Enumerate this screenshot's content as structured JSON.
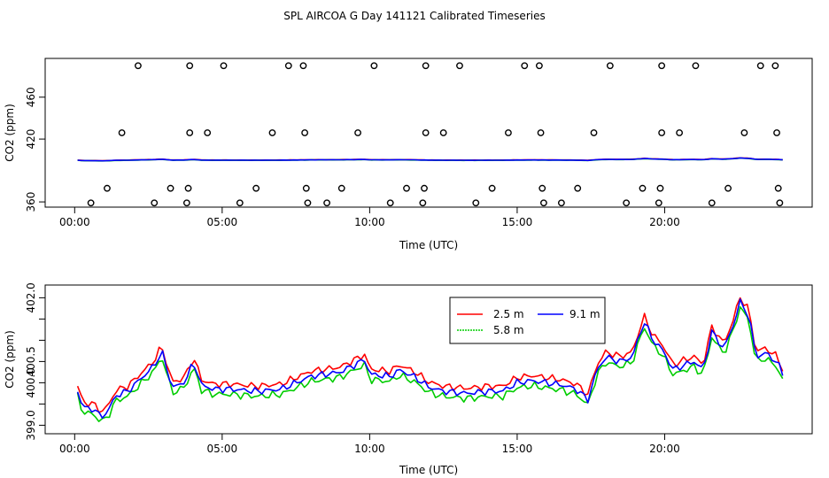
{
  "title": "SPL AIRCOA G  Day 141121  Calibrated Timeseries",
  "chart_data": [
    {
      "type": "scatter",
      "xlabel": "Time (UTC)",
      "ylabel": "CO2 (ppm)",
      "xlim": [
        -1,
        25
      ],
      "ylim": [
        355,
        497
      ],
      "xticks": [
        0,
        5,
        10,
        15,
        20
      ],
      "xtick_labels": [
        "00:00",
        "05:00",
        "10:00",
        "15:00",
        "20:00"
      ],
      "yticks": [
        360,
        420,
        460
      ],
      "ytick_labels": [
        "360",
        "420",
        "460"
      ],
      "grid": false,
      "flag_points": [
        [
          0.55,
          359
        ],
        [
          1.1,
          373
        ],
        [
          1.6,
          426
        ],
        [
          2.15,
          490
        ],
        [
          2.7,
          359
        ],
        [
          3.25,
          373
        ],
        [
          3.8,
          359
        ],
        [
          3.85,
          373
        ],
        [
          3.9,
          426
        ],
        [
          3.9,
          490
        ],
        [
          4.5,
          426
        ],
        [
          5.05,
          490
        ],
        [
          5.6,
          359
        ],
        [
          6.15,
          373
        ],
        [
          6.7,
          426
        ],
        [
          7.25,
          490
        ],
        [
          7.75,
          490
        ],
        [
          7.8,
          426
        ],
        [
          7.85,
          373
        ],
        [
          7.9,
          359
        ],
        [
          8.55,
          359
        ],
        [
          9.05,
          373
        ],
        [
          9.6,
          426
        ],
        [
          10.15,
          490
        ],
        [
          10.7,
          359
        ],
        [
          11.25,
          373
        ],
        [
          11.8,
          359
        ],
        [
          11.85,
          373
        ],
        [
          11.9,
          426
        ],
        [
          11.9,
          490
        ],
        [
          12.5,
          426
        ],
        [
          13.05,
          490
        ],
        [
          13.6,
          359
        ],
        [
          14.15,
          373
        ],
        [
          14.7,
          426
        ],
        [
          15.25,
          490
        ],
        [
          15.75,
          490
        ],
        [
          15.8,
          426
        ],
        [
          15.85,
          373
        ],
        [
          15.9,
          359
        ],
        [
          16.5,
          359
        ],
        [
          17.05,
          373
        ],
        [
          17.6,
          426
        ],
        [
          18.15,
          490
        ],
        [
          18.7,
          359
        ],
        [
          19.25,
          373
        ],
        [
          19.8,
          359
        ],
        [
          19.85,
          373
        ],
        [
          19.9,
          426
        ],
        [
          19.9,
          490
        ],
        [
          20.5,
          426
        ],
        [
          21.05,
          490
        ],
        [
          21.6,
          359
        ],
        [
          22.15,
          373
        ],
        [
          22.7,
          426
        ],
        [
          23.25,
          490
        ],
        [
          23.75,
          490
        ],
        [
          23.8,
          426
        ],
        [
          23.85,
          373
        ],
        [
          23.9,
          359
        ]
      ],
      "series_level": 400
    },
    {
      "type": "line",
      "xlabel": "Time (UTC)",
      "ylabel": "CO2 (ppm)",
      "xlim": [
        -1,
        25
      ],
      "ylim": [
        398.8,
        402.3
      ],
      "xticks": [
        0,
        5,
        10,
        15,
        20
      ],
      "xtick_labels": [
        "00:00",
        "05:00",
        "10:00",
        "15:00",
        "20:00"
      ],
      "yticks": [
        399.0,
        399.5,
        400.0,
        400.5,
        401.0,
        401.5,
        402.0
      ],
      "ytick_labels": [
        "399.0",
        "",
        "400.0",
        "400.5",
        "",
        "",
        "402.0"
      ],
      "grid": false,
      "legend_position": "top-right",
      "anchors": [
        [
          0.1,
          399.8
        ],
        [
          0.3,
          399.4
        ],
        [
          0.6,
          399.4
        ],
        [
          0.9,
          399.2
        ],
        [
          1.1,
          399.3
        ],
        [
          1.4,
          399.7
        ],
        [
          1.8,
          399.8
        ],
        [
          2.1,
          400.0
        ],
        [
          2.4,
          400.2
        ],
        [
          2.7,
          400.4
        ],
        [
          2.95,
          400.75
        ],
        [
          3.3,
          399.9
        ],
        [
          3.6,
          399.95
        ],
        [
          3.9,
          400.2
        ],
        [
          4.0,
          400.55
        ],
        [
          4.3,
          399.95
        ],
        [
          4.7,
          399.85
        ],
        [
          5.3,
          399.85
        ],
        [
          6.2,
          399.8
        ],
        [
          7.0,
          399.85
        ],
        [
          8.0,
          400.15
        ],
        [
          9.0,
          400.25
        ],
        [
          9.85,
          400.55
        ],
        [
          10.0,
          400.2
        ],
        [
          10.7,
          400.15
        ],
        [
          11.0,
          400.3
        ],
        [
          11.5,
          400.15
        ],
        [
          12.0,
          399.9
        ],
        [
          12.5,
          399.8
        ],
        [
          13.3,
          399.75
        ],
        [
          14.0,
          399.8
        ],
        [
          14.5,
          399.8
        ],
        [
          15.0,
          400.0
        ],
        [
          15.5,
          400.05
        ],
        [
          16.0,
          400.0
        ],
        [
          16.5,
          399.95
        ],
        [
          17.0,
          399.85
        ],
        [
          17.4,
          399.6
        ],
        [
          17.7,
          400.3
        ],
        [
          18.0,
          400.6
        ],
        [
          18.5,
          400.5
        ],
        [
          18.9,
          400.6
        ],
        [
          19.3,
          401.45
        ],
        [
          19.6,
          401.0
        ],
        [
          19.9,
          400.8
        ],
        [
          20.3,
          400.3
        ],
        [
          20.6,
          400.4
        ],
        [
          21.0,
          400.5
        ],
        [
          21.3,
          400.3
        ],
        [
          21.6,
          401.2
        ],
        [
          22.0,
          400.8
        ],
        [
          22.3,
          401.3
        ],
        [
          22.55,
          401.9
        ],
        [
          22.85,
          401.6
        ],
        [
          23.1,
          400.6
        ],
        [
          23.4,
          400.7
        ],
        [
          23.8,
          400.5
        ],
        [
          24.0,
          400.2
        ]
      ],
      "series": [
        {
          "name": "2.5 m",
          "color": "#ff0000",
          "offset": 0.12,
          "jitter": 0.09
        },
        {
          "name": "5.8 m",
          "color": "#00cd00",
          "offset": -0.12,
          "jitter": 0.1
        },
        {
          "name": "9.1 m",
          "color": "#0000ff",
          "offset": 0.0,
          "jitter": 0.09
        }
      ]
    }
  ]
}
